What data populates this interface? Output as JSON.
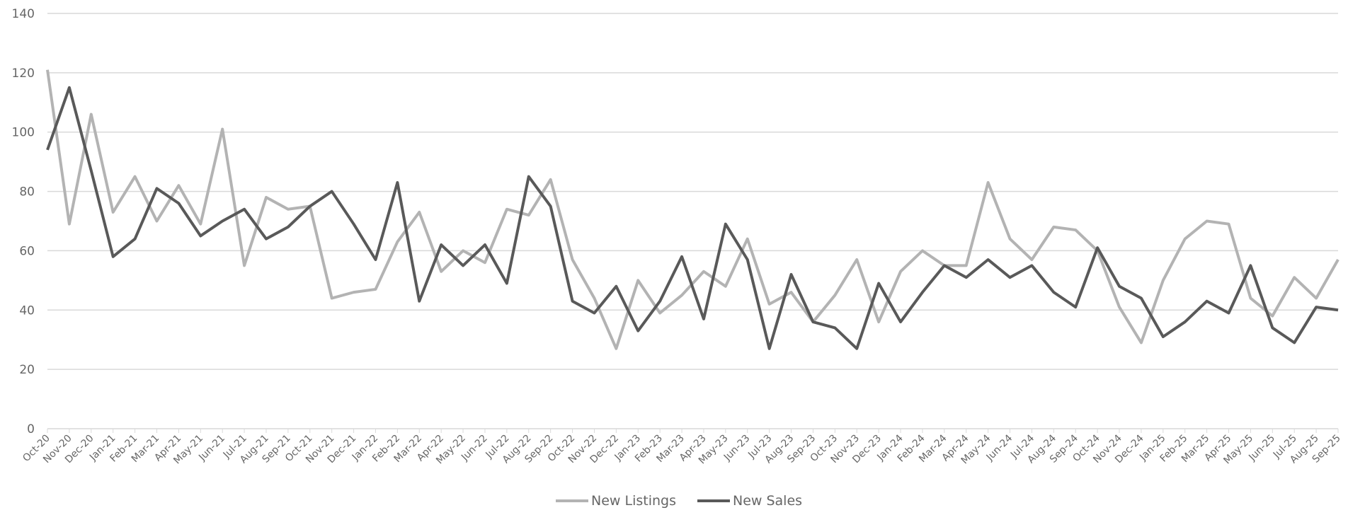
{
  "chart_data": {
    "type": "line",
    "categories": [
      "Oct-20",
      "Nov-20",
      "Dec-20",
      "Jan-21",
      "Feb-21",
      "Mar-21",
      "Apr-21",
      "May-21",
      "Jun-21",
      "Jul-21",
      "Aug-21",
      "Sep-21",
      "Oct-21",
      "Nov-21",
      "Dec-21",
      "Jan-22",
      "Feb-22",
      "Mar-22",
      "Apr-22",
      "May-22",
      "Jun-22",
      "Jul-22",
      "Aug-22",
      "Sep-22",
      "Oct-22",
      "Nov-22",
      "Dec-22",
      "Jan-23",
      "Feb-23",
      "Mar-23",
      "Apr-23",
      "May-23",
      "Jun-23",
      "Jul-23",
      "Aug-23",
      "Sep-23",
      "Oct-23",
      "Nov-23",
      "Dec-23",
      "Jan-24",
      "Feb-24",
      "Mar-24",
      "Apr-24",
      "May-24",
      "Jun-24",
      "Jul-24",
      "Aug-24",
      "Sep-24",
      "Oct-24",
      "Nov-24",
      "Dec-24",
      "Jan-25",
      "Feb-25",
      "Mar-25",
      "Apr-25",
      "May-25",
      "Jun-25",
      "Jul-25",
      "Aug-25",
      "Sep-25"
    ],
    "series": [
      {
        "name": "New Listings",
        "color": "#b3b3b3",
        "values": [
          121,
          69,
          106,
          73,
          85,
          70,
          82,
          69,
          101,
          55,
          78,
          74,
          75,
          44,
          46,
          47,
          63,
          73,
          53,
          60,
          56,
          74,
          72,
          84,
          57,
          44,
          27,
          50,
          39,
          45,
          53,
          48,
          64,
          42,
          46,
          36,
          45,
          57,
          36,
          53,
          60,
          55,
          55,
          83,
          64,
          57,
          68,
          67,
          60,
          41,
          29,
          50,
          64,
          70,
          69,
          44,
          38,
          51,
          44,
          57
        ]
      },
      {
        "name": "New Sales",
        "color": "#595959",
        "values": [
          94,
          115,
          87,
          58,
          64,
          81,
          76,
          65,
          70,
          74,
          64,
          68,
          75,
          80,
          69,
          57,
          83,
          43,
          62,
          55,
          62,
          49,
          85,
          75,
          43,
          39,
          48,
          33,
          43,
          58,
          37,
          69,
          57,
          27,
          52,
          36,
          34,
          27,
          49,
          36,
          46,
          55,
          51,
          57,
          51,
          55,
          46,
          41,
          61,
          48,
          44,
          31,
          36,
          43,
          39,
          55,
          34,
          29,
          41,
          40
        ]
      }
    ],
    "ylim": [
      0,
      140
    ],
    "yticks": [
      0,
      20,
      40,
      60,
      80,
      100,
      120,
      140
    ],
    "grid": true,
    "legend": "bottom"
  }
}
